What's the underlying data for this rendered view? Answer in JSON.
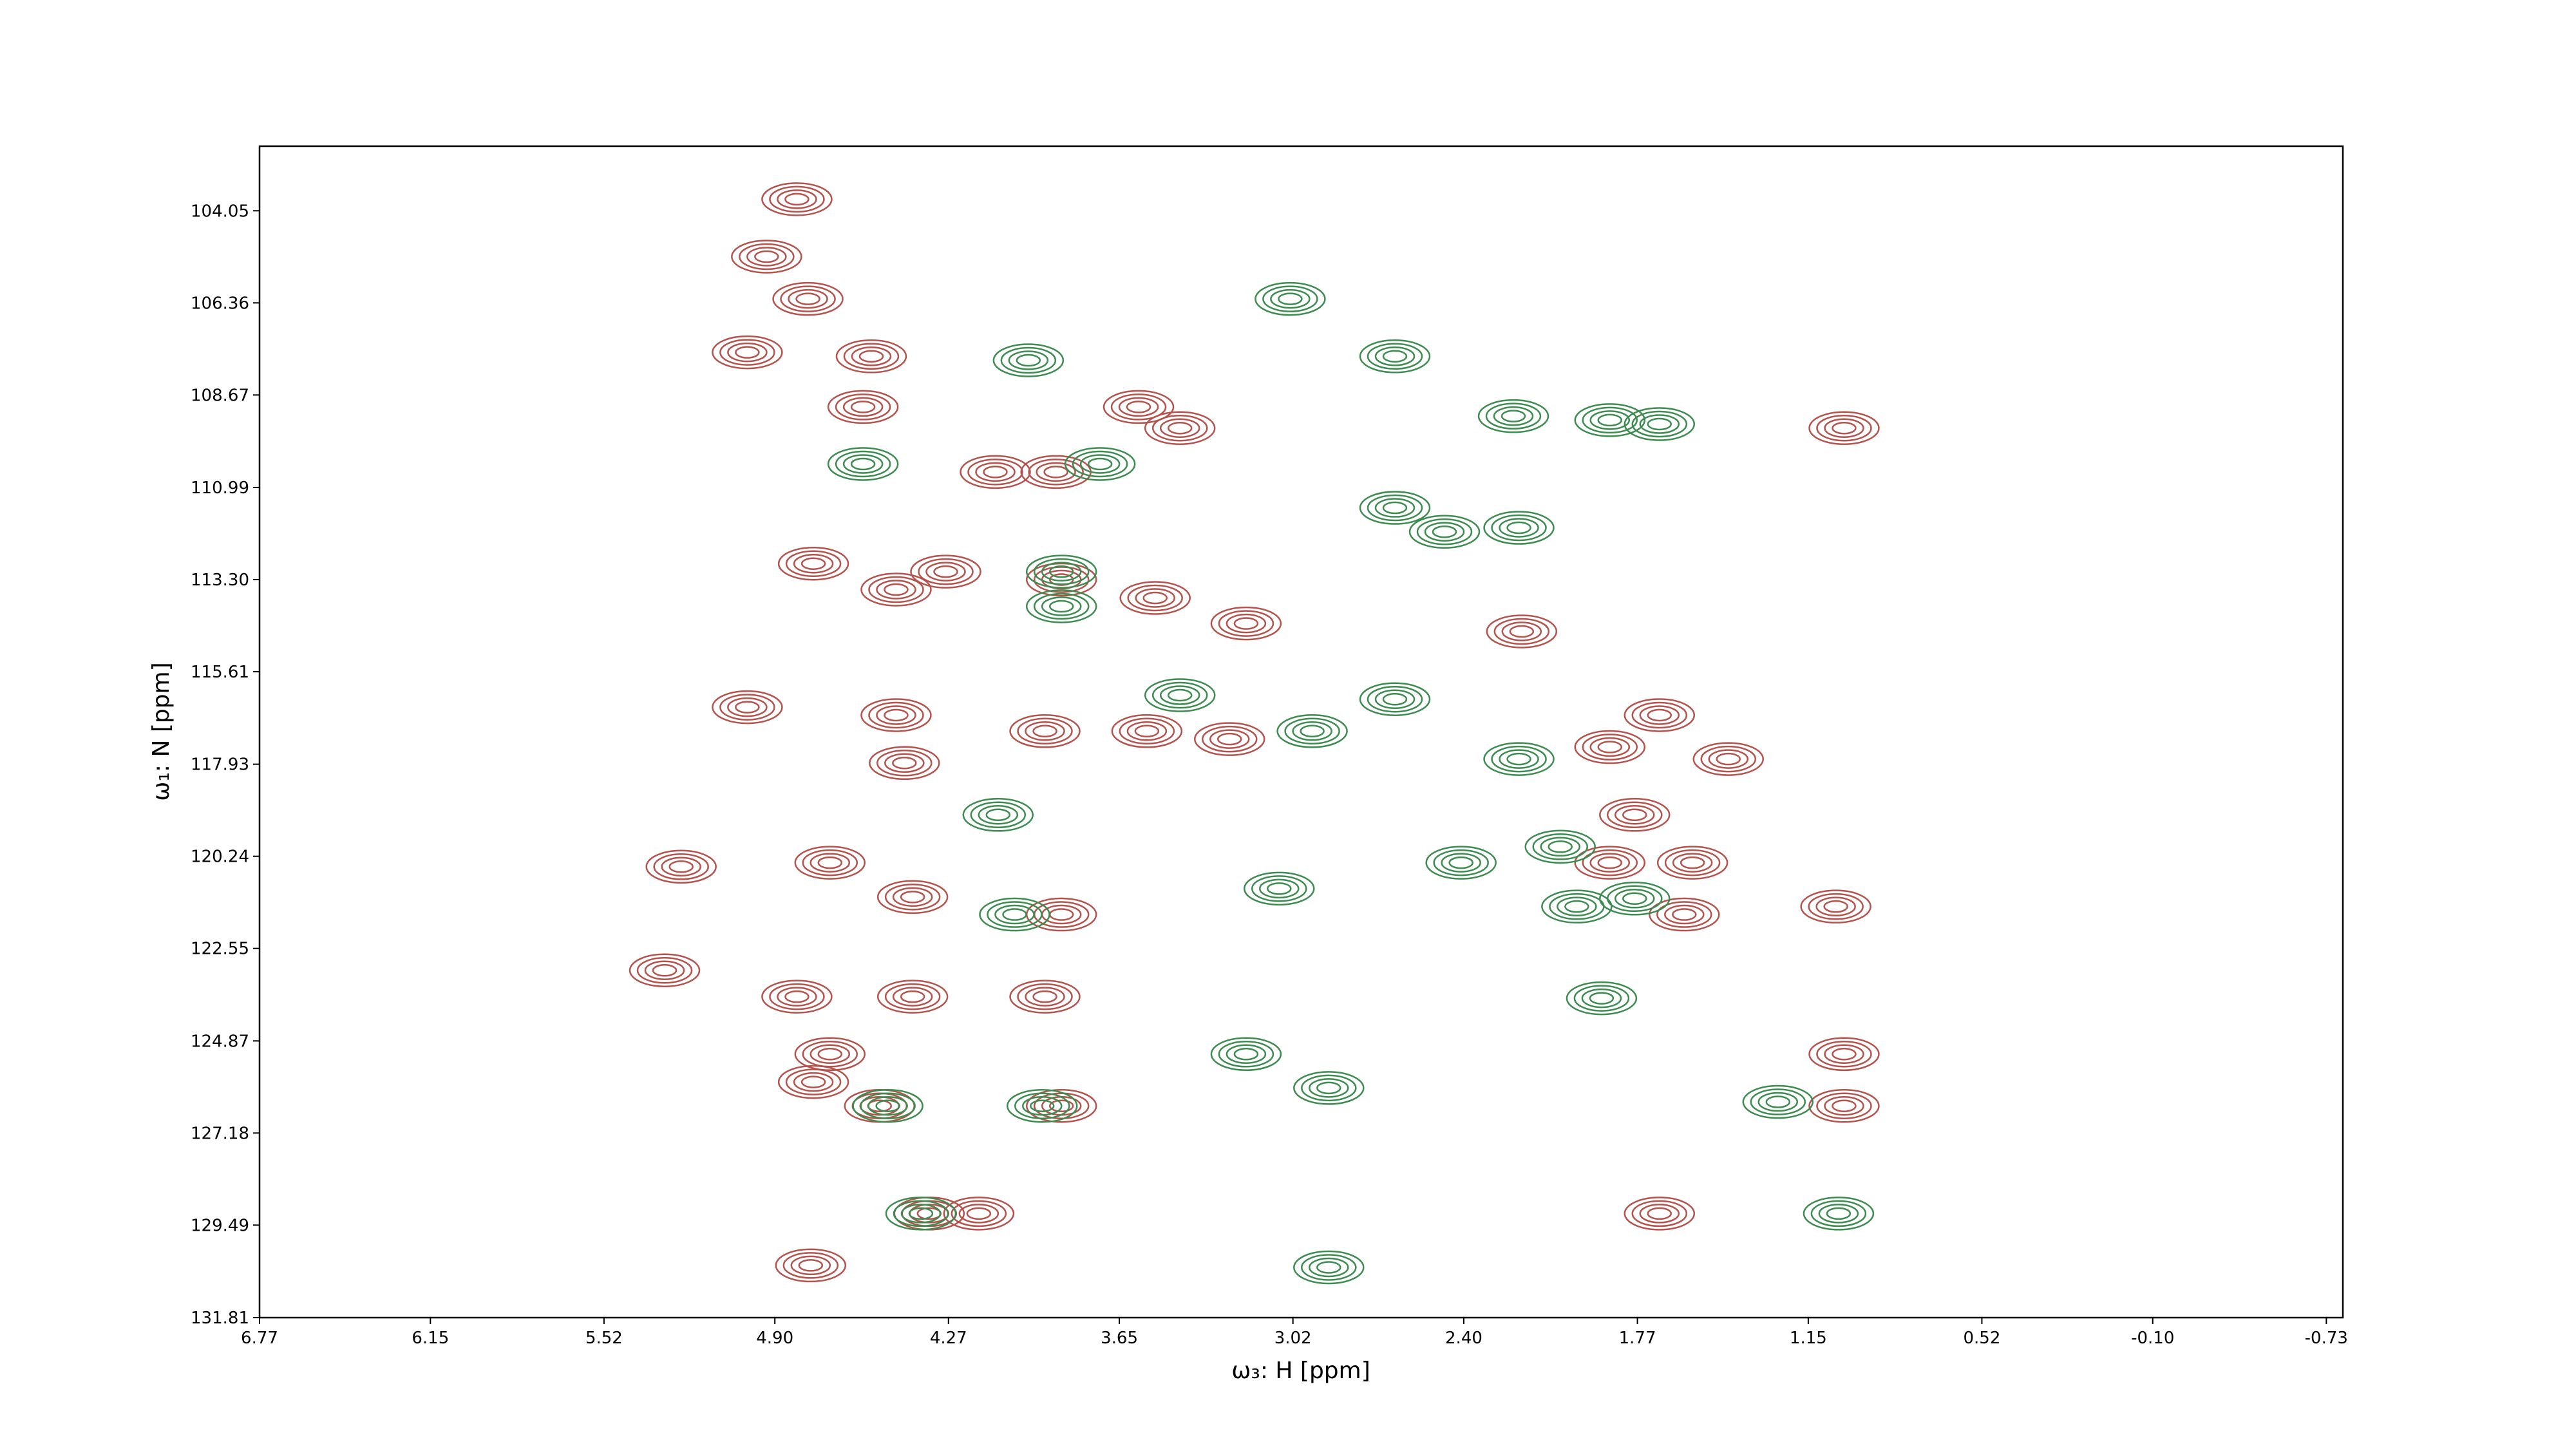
{
  "chart_data": {
    "type": "contour",
    "xlabel": "ω₃: H [ppm]",
    "ylabel": "ω₁: N [ppm]",
    "xlim": [
      6.77,
      -0.79
    ],
    "ylim": [
      131.81,
      102.43
    ],
    "xticks": [
      6.77,
      6.15,
      5.52,
      {
        "value": 4.9,
        "label": "4.90"
      },
      4.27,
      3.65,
      3.02,
      {
        "value": 2.4,
        "label": "2.40"
      },
      1.77,
      1.15,
      0.52,
      {
        "value": -0.1,
        "label": "-0.10"
      },
      -0.73
    ],
    "yticks": [
      104.05,
      106.36,
      108.67,
      110.99,
      {
        "value": 113.3,
        "label": "113.30"
      },
      115.61,
      117.93,
      120.24,
      122.55,
      124.87,
      127.18,
      129.49,
      131.81
    ],
    "levels": 4,
    "series": [
      {
        "color": "#b5524c",
        "x": [
          4.82,
          4.93,
          4.78,
          5.0,
          4.55,
          4.58,
          3.58,
          3.43,
          1.02,
          4.1,
          3.88,
          4.76,
          4.46,
          4.28,
          3.86,
          3.52,
          3.19,
          5.0,
          4.46,
          3.92,
          3.55,
          3.25,
          4.43,
          1.44,
          1.69,
          1.87,
          5.24,
          4.7,
          4.4,
          3.86,
          1.57,
          1.6,
          5.3,
          4.82,
          4.4,
          3.92,
          4.7,
          4.76,
          4.52,
          3.86,
          1.02,
          1.02,
          1.05,
          1.69,
          4.34,
          4.16,
          4.77,
          1.87,
          1.78,
          2.19
        ],
        "y": [
          103.76,
          105.2,
          106.26,
          107.6,
          107.7,
          108.97,
          108.97,
          109.5,
          109.5,
          110.6,
          110.6,
          112.9,
          113.55,
          113.1,
          113.3,
          113.76,
          114.4,
          116.5,
          116.7,
          117.1,
          117.1,
          117.3,
          117.9,
          117.8,
          116.7,
          117.5,
          120.5,
          120.4,
          121.26,
          121.7,
          120.4,
          121.7,
          123.1,
          123.76,
          123.76,
          123.76,
          125.2,
          125.9,
          126.5,
          126.5,
          126.5,
          125.2,
          121.5,
          129.2,
          129.2,
          129.2,
          130.5,
          120.4,
          119.2,
          114.6
        ]
      },
      {
        "color": "#3c8c50",
        "x": [
          3.03,
          3.98,
          4.58,
          3.72,
          2.65,
          2.22,
          1.87,
          2.65,
          2.47,
          2.2,
          3.86,
          3.86,
          3.43,
          2.95,
          2.65,
          2.2,
          4.09,
          3.07,
          4.03,
          1.99,
          1.78,
          1.9,
          3.19,
          2.89,
          3.93,
          4.49,
          2.89,
          4.37,
          1.26,
          1.04,
          2.41,
          2.05,
          1.69
        ],
        "y": [
          106.26,
          107.8,
          110.4,
          110.4,
          107.7,
          109.2,
          109.3,
          111.5,
          112.1,
          112.0,
          113.1,
          113.97,
          116.2,
          117.1,
          116.3,
          117.8,
          119.2,
          121.05,
          121.7,
          121.5,
          121.3,
          123.8,
          125.2,
          126.05,
          126.5,
          126.5,
          130.55,
          129.2,
          126.4,
          129.2,
          120.4,
          120.0,
          109.4
        ]
      }
    ]
  }
}
